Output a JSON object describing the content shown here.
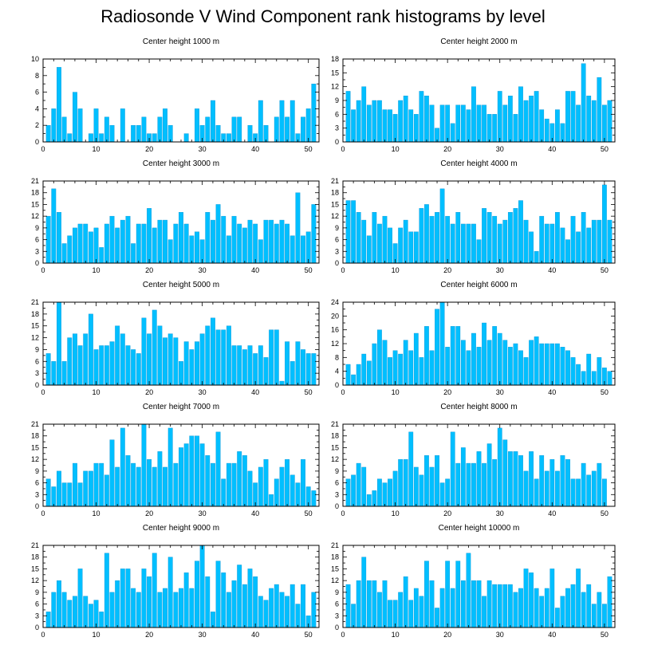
{
  "title": "Radiosonde V Wind Component rank histograms by level",
  "colors": {
    "bar": "#00bfff",
    "bar_edge": "#0a94d6",
    "axis": "#000000"
  },
  "chart_data": [
    {
      "type": "bar",
      "title": "Center height 1000 m",
      "xlim": [
        0,
        52
      ],
      "ylim": [
        0,
        10
      ],
      "xticks": [
        0,
        10,
        20,
        30,
        40,
        50
      ],
      "yticks": [
        0,
        2,
        4,
        6,
        8,
        10
      ],
      "xlabel": "",
      "ylabel": "",
      "x": [
        1,
        2,
        3,
        4,
        5,
        6,
        7,
        8,
        9,
        10,
        11,
        12,
        13,
        14,
        15,
        16,
        17,
        18,
        19,
        20,
        21,
        22,
        23,
        24,
        25,
        26,
        27,
        28,
        29,
        30,
        31,
        32,
        33,
        34,
        35,
        36,
        37,
        38,
        39,
        40,
        41,
        42,
        43,
        44,
        45,
        46,
        47,
        48,
        49,
        50,
        51
      ],
      "values": [
        2,
        4,
        9,
        3,
        1,
        6,
        4,
        0,
        1,
        4,
        1,
        3,
        2,
        0,
        4,
        0,
        2,
        2,
        3,
        1,
        1,
        3,
        4,
        2,
        0,
        0,
        1,
        0,
        4,
        2,
        3,
        5,
        2,
        1,
        1,
        3,
        3,
        0,
        2,
        1,
        5,
        2,
        0,
        3,
        5,
        3,
        5,
        1,
        3,
        4,
        7
      ]
    },
    {
      "type": "bar",
      "title": "Center height 2000 m",
      "xlim": [
        0,
        52
      ],
      "ylim": [
        0,
        18
      ],
      "xticks": [
        0,
        10,
        20,
        30,
        40,
        50
      ],
      "yticks": [
        0,
        3,
        6,
        9,
        12,
        15,
        18
      ],
      "xlabel": "",
      "ylabel": "",
      "x": [
        1,
        2,
        3,
        4,
        5,
        6,
        7,
        8,
        9,
        10,
        11,
        12,
        13,
        14,
        15,
        16,
        17,
        18,
        19,
        20,
        21,
        22,
        23,
        24,
        25,
        26,
        27,
        28,
        29,
        30,
        31,
        32,
        33,
        34,
        35,
        36,
        37,
        38,
        39,
        40,
        41,
        42,
        43,
        44,
        45,
        46,
        47,
        48,
        49,
        50,
        51
      ],
      "values": [
        11,
        7,
        9,
        12,
        8,
        9,
        9,
        7,
        7,
        6,
        9,
        10,
        7,
        6,
        11,
        10,
        8,
        3,
        8,
        8,
        4,
        8,
        8,
        7,
        12,
        8,
        8,
        6,
        6,
        11,
        8,
        10,
        6,
        12,
        9,
        10,
        11,
        7,
        5,
        4,
        7,
        4,
        11,
        11,
        8,
        17,
        10,
        9,
        14,
        8,
        9
      ]
    },
    {
      "type": "bar",
      "title": "Center height 3000 m",
      "xlim": [
        0,
        52
      ],
      "ylim": [
        0,
        21
      ],
      "xticks": [
        0,
        10,
        20,
        30,
        40,
        50
      ],
      "yticks": [
        0,
        3,
        6,
        9,
        12,
        15,
        18,
        21
      ],
      "xlabel": "",
      "ylabel": "",
      "x": [
        1,
        2,
        3,
        4,
        5,
        6,
        7,
        8,
        9,
        10,
        11,
        12,
        13,
        14,
        15,
        16,
        17,
        18,
        19,
        20,
        21,
        22,
        23,
        24,
        25,
        26,
        27,
        28,
        29,
        30,
        31,
        32,
        33,
        34,
        35,
        36,
        37,
        38,
        39,
        40,
        41,
        42,
        43,
        44,
        45,
        46,
        47,
        48,
        49,
        50,
        51
      ],
      "values": [
        12,
        19,
        13,
        5,
        7,
        9,
        10,
        10,
        8,
        9,
        4,
        10,
        12,
        9,
        11,
        12,
        5,
        10,
        10,
        14,
        9,
        11,
        11,
        6,
        10,
        13,
        10,
        7,
        8,
        6,
        13,
        11,
        15,
        12,
        7,
        12,
        10,
        9,
        11,
        10,
        6,
        11,
        11,
        10,
        11,
        10,
        7,
        18,
        7,
        8,
        15
      ]
    },
    {
      "type": "bar",
      "title": "Center height 4000 m",
      "xlim": [
        0,
        52
      ],
      "ylim": [
        0,
        21
      ],
      "xticks": [
        0,
        10,
        20,
        30,
        40,
        50
      ],
      "yticks": [
        0,
        3,
        6,
        9,
        12,
        15,
        18,
        21
      ],
      "xlabel": "",
      "ylabel": "",
      "x": [
        1,
        2,
        3,
        4,
        5,
        6,
        7,
        8,
        9,
        10,
        11,
        12,
        13,
        14,
        15,
        16,
        17,
        18,
        19,
        20,
        21,
        22,
        23,
        24,
        25,
        26,
        27,
        28,
        29,
        30,
        31,
        32,
        33,
        34,
        35,
        36,
        37,
        38,
        39,
        40,
        41,
        42,
        43,
        44,
        45,
        46,
        47,
        48,
        49,
        50,
        51
      ],
      "values": [
        16,
        16,
        13,
        11,
        7,
        13,
        10,
        12,
        9,
        5,
        9,
        11,
        8,
        8,
        14,
        15,
        12,
        13,
        19,
        12,
        10,
        13,
        10,
        10,
        10,
        6,
        14,
        13,
        12,
        10,
        11,
        13,
        14,
        16,
        11,
        8,
        3,
        12,
        10,
        10,
        13,
        9,
        6,
        12,
        8,
        13,
        9,
        11,
        11,
        20,
        11
      ]
    },
    {
      "type": "bar",
      "title": "Center height 5000 m",
      "xlim": [
        0,
        52
      ],
      "ylim": [
        0,
        21
      ],
      "xticks": [
        0,
        10,
        20,
        30,
        40,
        50
      ],
      "yticks": [
        0,
        3,
        6,
        9,
        12,
        15,
        18,
        21
      ],
      "xlabel": "",
      "ylabel": "",
      "x": [
        1,
        2,
        3,
        4,
        5,
        6,
        7,
        8,
        9,
        10,
        11,
        12,
        13,
        14,
        15,
        16,
        17,
        18,
        19,
        20,
        21,
        22,
        23,
        24,
        25,
        26,
        27,
        28,
        29,
        30,
        31,
        32,
        33,
        34,
        35,
        36,
        37,
        38,
        39,
        40,
        41,
        42,
        43,
        44,
        45,
        46,
        47,
        48,
        49,
        50,
        51
      ],
      "values": [
        8,
        6,
        21,
        6,
        12,
        13,
        10,
        13,
        18,
        9,
        10,
        10,
        11,
        15,
        13,
        10,
        9,
        8,
        17,
        13,
        19,
        15,
        12,
        13,
        12,
        6,
        11,
        9,
        11,
        13,
        15,
        17,
        14,
        14,
        15,
        10,
        10,
        9,
        10,
        8,
        10,
        7,
        14,
        14,
        1,
        11,
        6,
        11,
        9,
        8,
        8
      ]
    },
    {
      "type": "bar",
      "title": "Center height 6000 m",
      "xlim": [
        0,
        52
      ],
      "ylim": [
        0,
        24
      ],
      "xticks": [
        0,
        10,
        20,
        30,
        40,
        50
      ],
      "yticks": [
        0,
        4,
        8,
        12,
        16,
        20,
        24
      ],
      "xlabel": "",
      "ylabel": "",
      "x": [
        1,
        2,
        3,
        4,
        5,
        6,
        7,
        8,
        9,
        10,
        11,
        12,
        13,
        14,
        15,
        16,
        17,
        18,
        19,
        20,
        21,
        22,
        23,
        24,
        25,
        26,
        27,
        28,
        29,
        30,
        31,
        32,
        33,
        34,
        35,
        36,
        37,
        38,
        39,
        40,
        41,
        42,
        43,
        44,
        45,
        46,
        47,
        48,
        49,
        50,
        51
      ],
      "values": [
        6,
        3,
        6,
        9,
        7,
        12,
        16,
        13,
        8,
        10,
        9,
        13,
        10,
        15,
        8,
        17,
        10,
        22,
        24,
        11,
        17,
        17,
        13,
        10,
        15,
        11,
        18,
        13,
        17,
        15,
        13,
        11,
        12,
        10,
        8,
        13,
        14,
        12,
        12,
        12,
        12,
        11,
        10,
        8,
        6,
        4,
        9,
        4,
        8,
        5,
        4
      ]
    },
    {
      "type": "bar",
      "title": "Center height 7000 m",
      "xlim": [
        0,
        52
      ],
      "ylim": [
        0,
        21
      ],
      "xticks": [
        0,
        10,
        20,
        30,
        40,
        50
      ],
      "yticks": [
        0,
        3,
        6,
        9,
        12,
        15,
        18,
        21
      ],
      "xlabel": "",
      "ylabel": "",
      "x": [
        1,
        2,
        3,
        4,
        5,
        6,
        7,
        8,
        9,
        10,
        11,
        12,
        13,
        14,
        15,
        16,
        17,
        18,
        19,
        20,
        21,
        22,
        23,
        24,
        25,
        26,
        27,
        28,
        29,
        30,
        31,
        32,
        33,
        34,
        35,
        36,
        37,
        38,
        39,
        40,
        41,
        42,
        43,
        44,
        45,
        46,
        47,
        48,
        49,
        50,
        51
      ],
      "values": [
        7,
        5,
        9,
        6,
        6,
        11,
        6,
        9,
        9,
        11,
        11,
        8,
        17,
        10,
        20,
        13,
        11,
        10,
        21,
        12,
        10,
        14,
        10,
        20,
        11,
        15,
        16,
        18,
        18,
        16,
        13,
        11,
        19,
        7,
        11,
        11,
        14,
        13,
        9,
        6,
        10,
        12,
        3,
        7,
        10,
        12,
        8,
        6,
        12,
        5,
        4
      ]
    },
    {
      "type": "bar",
      "title": "Center height 8000 m",
      "xlim": [
        0,
        52
      ],
      "ylim": [
        0,
        21
      ],
      "xticks": [
        0,
        10,
        20,
        30,
        40,
        50
      ],
      "yticks": [
        0,
        3,
        6,
        9,
        12,
        15,
        18,
        21
      ],
      "xlabel": "",
      "ylabel": "",
      "x": [
        1,
        2,
        3,
        4,
        5,
        6,
        7,
        8,
        9,
        10,
        11,
        12,
        13,
        14,
        15,
        16,
        17,
        18,
        19,
        20,
        21,
        22,
        23,
        24,
        25,
        26,
        27,
        28,
        29,
        30,
        31,
        32,
        33,
        34,
        35,
        36,
        37,
        38,
        39,
        40,
        41,
        42,
        43,
        44,
        45,
        46,
        47,
        48,
        49,
        50,
        51
      ],
      "values": [
        7,
        8,
        11,
        10,
        3,
        4,
        7,
        6,
        7,
        9,
        12,
        12,
        19,
        10,
        8,
        13,
        10,
        13,
        6,
        7,
        19,
        11,
        15,
        11,
        11,
        14,
        11,
        16,
        12,
        20,
        17,
        14,
        14,
        13,
        9,
        14,
        7,
        13,
        9,
        12,
        9,
        13,
        12,
        7,
        7,
        11,
        8,
        9,
        11,
        7,
        0
      ]
    },
    {
      "type": "bar",
      "title": "Center height 9000 m",
      "xlim": [
        0,
        52
      ],
      "ylim": [
        0,
        21
      ],
      "xticks": [
        0,
        10,
        20,
        30,
        40,
        50
      ],
      "yticks": [
        0,
        3,
        6,
        9,
        12,
        15,
        18,
        21
      ],
      "xlabel": "",
      "ylabel": "",
      "x": [
        1,
        2,
        3,
        4,
        5,
        6,
        7,
        8,
        9,
        10,
        11,
        12,
        13,
        14,
        15,
        16,
        17,
        18,
        19,
        20,
        21,
        22,
        23,
        24,
        25,
        26,
        27,
        28,
        29,
        30,
        31,
        32,
        33,
        34,
        35,
        36,
        37,
        38,
        39,
        40,
        41,
        42,
        43,
        44,
        45,
        46,
        47,
        48,
        49,
        50,
        51
      ],
      "values": [
        4,
        9,
        12,
        9,
        7,
        8,
        15,
        8,
        6,
        7,
        4,
        19,
        9,
        12,
        15,
        15,
        10,
        9,
        15,
        13,
        19,
        9,
        10,
        18,
        9,
        10,
        14,
        10,
        17,
        21,
        13,
        4,
        17,
        14,
        9,
        12,
        16,
        11,
        15,
        13,
        8,
        7,
        10,
        11,
        9,
        8,
        11,
        6,
        11,
        3,
        9
      ]
    },
    {
      "type": "bar",
      "title": "Center height 10000 m",
      "xlim": [
        0,
        52
      ],
      "ylim": [
        0,
        21
      ],
      "xticks": [
        0,
        10,
        20,
        30,
        40,
        50
      ],
      "yticks": [
        0,
        3,
        6,
        9,
        12,
        15,
        18,
        21
      ],
      "xlabel": "",
      "ylabel": "",
      "x": [
        1,
        2,
        3,
        4,
        5,
        6,
        7,
        8,
        9,
        10,
        11,
        12,
        13,
        14,
        15,
        16,
        17,
        18,
        19,
        20,
        21,
        22,
        23,
        24,
        25,
        26,
        27,
        28,
        29,
        30,
        31,
        32,
        33,
        34,
        35,
        36,
        37,
        38,
        39,
        40,
        41,
        42,
        43,
        44,
        45,
        46,
        47,
        48,
        49,
        50,
        51
      ],
      "values": [
        11,
        6,
        12,
        18,
        12,
        12,
        9,
        12,
        7,
        7,
        9,
        13,
        7,
        10,
        8,
        17,
        12,
        5,
        10,
        17,
        10,
        17,
        12,
        19,
        12,
        12,
        8,
        12,
        11,
        11,
        11,
        11,
        9,
        10,
        15,
        14,
        10,
        8,
        10,
        15,
        5,
        8,
        10,
        11,
        15,
        9,
        11,
        6,
        9,
        6,
        13
      ]
    }
  ]
}
